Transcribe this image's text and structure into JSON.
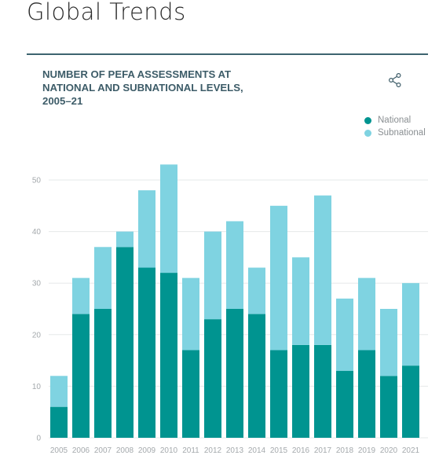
{
  "page": {
    "title": "Global Trends"
  },
  "colors": {
    "national": "#009490",
    "subnational": "#7fd3e1",
    "header_rule": "#3d6470",
    "chart_title": "#3d5c68",
    "gridline": "#e6e9ea",
    "tick_text": "#a4a9ac"
  },
  "icons": {
    "share": "share-icon"
  },
  "chart_data": {
    "type": "bar",
    "stacked": true,
    "title": "NUMBER OF PEFA ASSESSMENTS AT NATIONAL AND SUBNATIONAL LEVELS, 2005–21",
    "categories": [
      "2005",
      "2006",
      "2007",
      "2008",
      "2009",
      "2010",
      "2011",
      "2012",
      "2013",
      "2014",
      "2015",
      "2016",
      "2017",
      "2018",
      "2019",
      "2020",
      "2021"
    ],
    "series": [
      {
        "name": "National",
        "values": [
          6,
          24,
          25,
          37,
          33,
          32,
          17,
          23,
          25,
          24,
          17,
          18,
          18,
          13,
          17,
          12,
          14
        ]
      },
      {
        "name": "Subnational",
        "values": [
          6,
          7,
          12,
          3,
          15,
          21,
          14,
          17,
          17,
          9,
          28,
          17,
          29,
          14,
          14,
          13,
          16
        ]
      }
    ],
    "yticks": [
      0,
      10,
      20,
      30,
      40,
      50
    ],
    "ylim": [
      0,
      55
    ],
    "grid": true,
    "legend": "top-right",
    "xlabel": "",
    "ylabel": ""
  }
}
